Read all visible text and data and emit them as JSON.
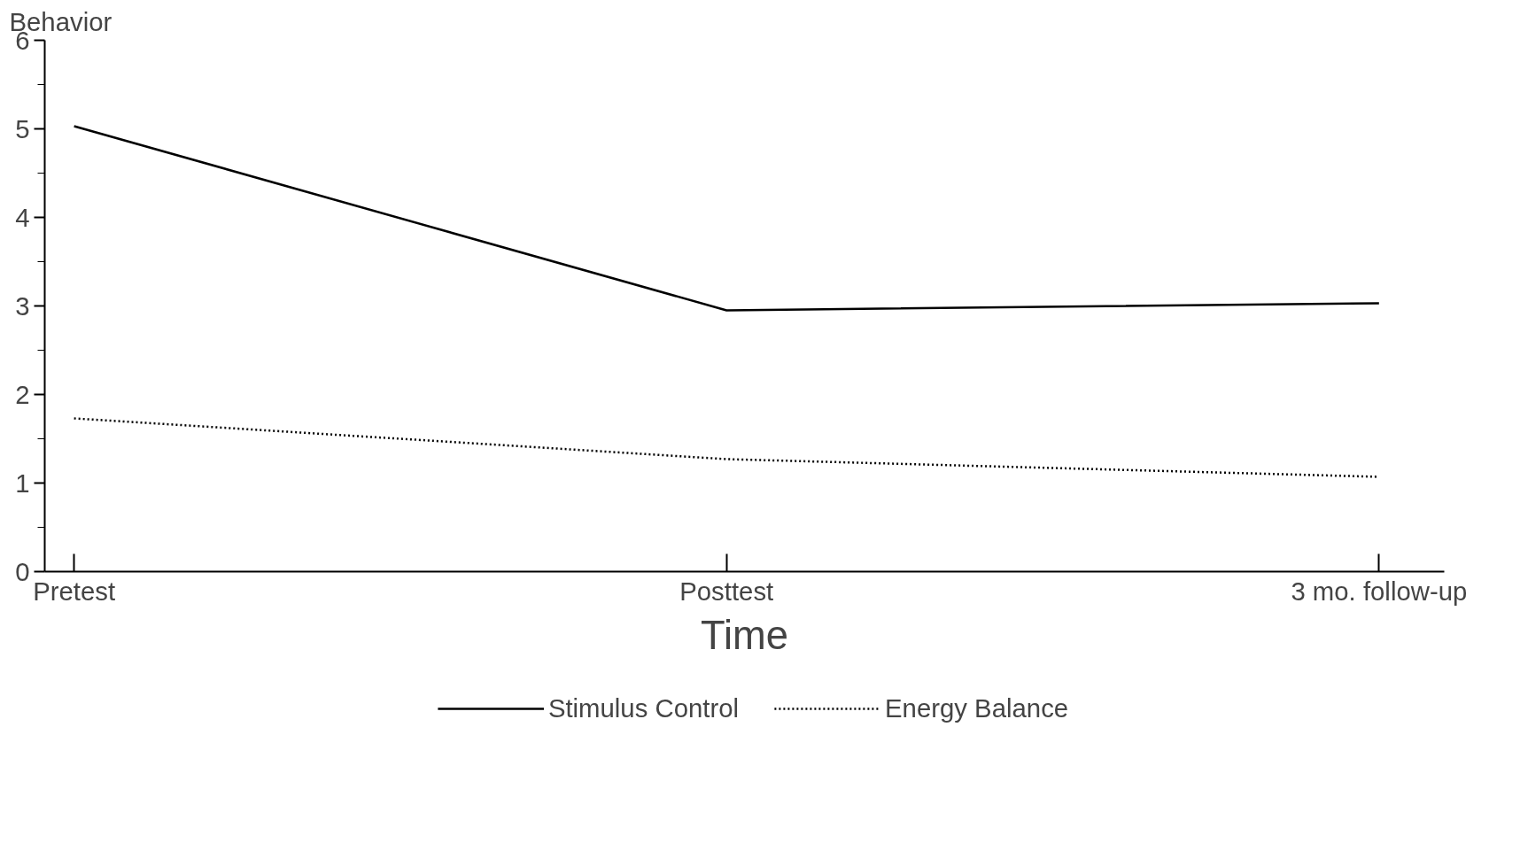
{
  "chart_data": {
    "type": "line",
    "xlabel": "Time",
    "ylabel": "Behavior",
    "categories": [
      "Pretest",
      "Posttest",
      "3 mo. follow-up"
    ],
    "series": [
      {
        "name": "Stimulus Control",
        "color": "#000000",
        "line_style": "solid",
        "values": [
          5.03,
          2.95,
          3.03
        ]
      },
      {
        "name": "Energy Balance",
        "color": "#000000",
        "line_style": "dotted",
        "values": [
          1.73,
          1.27,
          1.07
        ]
      }
    ],
    "ylim": [
      0,
      6
    ],
    "yticks": [
      0,
      1,
      2,
      3,
      4,
      5,
      6
    ],
    "grid": false,
    "legend": "bottom",
    "marker": "none"
  }
}
